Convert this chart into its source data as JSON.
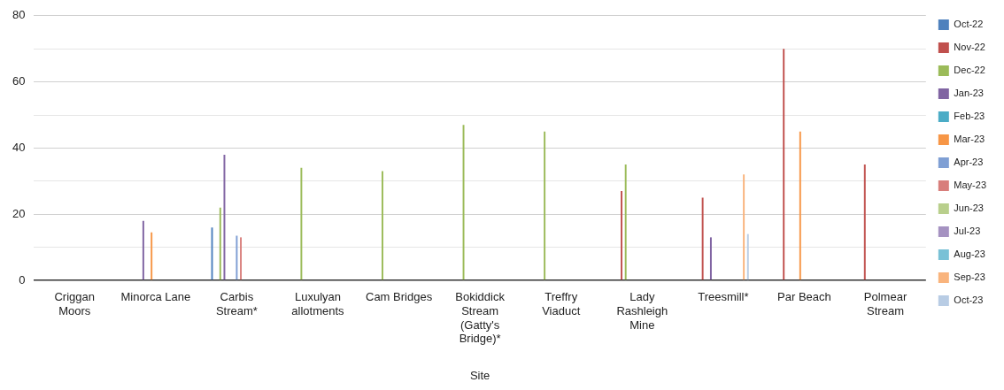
{
  "chart_data": {
    "type": "bar",
    "xlabel": "Site",
    "categories": [
      "Criggan Moors",
      "Minorca Lane",
      "Carbis Stream*",
      "Luxulyan allotments",
      "Cam Bridges",
      "Bokiddick Stream (Gatty's Bridge)*",
      "Treffry Viaduct",
      "Lady Rashleigh Mine",
      "Treesmill*",
      "Par Beach",
      "Polmear Stream"
    ],
    "series": [
      {
        "name": "Oct-22",
        "color": "#4f81bd",
        "values": [
          null,
          null,
          16,
          null,
          null,
          null,
          null,
          null,
          null,
          null,
          null
        ]
      },
      {
        "name": "Nov-22",
        "color": "#c0504d",
        "values": [
          null,
          null,
          null,
          null,
          null,
          null,
          null,
          27,
          25,
          70,
          35
        ]
      },
      {
        "name": "Dec-22",
        "color": "#9bbb59",
        "values": [
          null,
          null,
          22,
          34,
          33,
          47,
          45,
          35,
          null,
          null,
          null
        ]
      },
      {
        "name": "Jan-23",
        "color": "#8064a2",
        "values": [
          null,
          18,
          38,
          null,
          null,
          null,
          null,
          null,
          13,
          null,
          null
        ]
      },
      {
        "name": "Feb-23",
        "color": "#4bacc6",
        "values": [
          null,
          null,
          null,
          null,
          null,
          null,
          null,
          null,
          null,
          null,
          null
        ]
      },
      {
        "name": "Mar-23",
        "color": "#f79646",
        "values": [
          null,
          14.5,
          null,
          null,
          null,
          null,
          null,
          null,
          null,
          45,
          null
        ]
      },
      {
        "name": "Apr-23",
        "color": "#7f9fd4",
        "values": [
          null,
          null,
          13.5,
          null,
          null,
          null,
          null,
          null,
          null,
          null,
          null
        ]
      },
      {
        "name": "May-23",
        "color": "#d87e7b",
        "values": [
          null,
          null,
          13,
          null,
          null,
          null,
          null,
          null,
          null,
          null,
          null
        ]
      },
      {
        "name": "Jun-23",
        "color": "#b9cf8c",
        "values": [
          null,
          null,
          null,
          null,
          null,
          null,
          null,
          null,
          null,
          null,
          null
        ]
      },
      {
        "name": "Jul-23",
        "color": "#a592c1",
        "values": [
          null,
          null,
          null,
          null,
          null,
          null,
          null,
          null,
          null,
          null,
          null
        ]
      },
      {
        "name": "Aug-23",
        "color": "#79c1d6",
        "values": [
          null,
          null,
          null,
          null,
          null,
          null,
          null,
          null,
          null,
          null,
          null
        ]
      },
      {
        "name": "Sep-23",
        "color": "#f9b47d",
        "values": [
          null,
          null,
          null,
          null,
          null,
          null,
          null,
          null,
          32,
          null,
          null
        ]
      },
      {
        "name": "Oct-23",
        "color": "#b8cce4",
        "values": [
          null,
          null,
          null,
          null,
          null,
          null,
          null,
          null,
          14,
          null,
          null
        ]
      }
    ],
    "ylim": [
      0,
      80
    ],
    "yticks": [
      0,
      {
        "value": 10,
        "label": null
      },
      20,
      {
        "value": 30,
        "label": null
      },
      40,
      {
        "value": 50,
        "label": null
      },
      60,
      {
        "value": 70,
        "label": null
      },
      80
    ],
    "grid": "y",
    "legend": "right"
  }
}
